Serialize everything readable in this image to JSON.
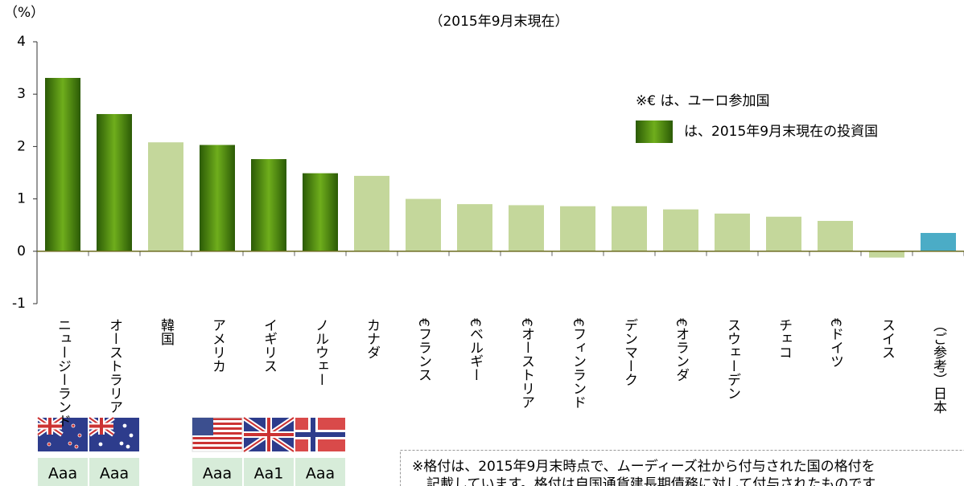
{
  "chart_data": {
    "type": "bar",
    "subtitle": "（2015年9月末現在）",
    "y_label": "（%）",
    "categories": [
      "ニュージーランド",
      "オーストラリア",
      "韓国",
      "アメリカ",
      "イギリス",
      "ノルウェー",
      "カナダ",
      "€フランス",
      "€ベルギー",
      "€オーストリア",
      "€フィンランド",
      "デンマーク",
      "€オランダ",
      "スウェーデン",
      "チェコ",
      "€ドイツ",
      "スイス",
      "（ご参考）日本"
    ],
    "values": [
      3.31,
      2.62,
      2.08,
      2.03,
      1.76,
      1.49,
      1.44,
      1.0,
      0.9,
      0.88,
      0.86,
      0.86,
      0.8,
      0.72,
      0.66,
      0.58,
      -0.12,
      0.35
    ],
    "colors": [
      "#3f7d0d",
      "#3f7d0d",
      "#c4d79b",
      "#3f7d0d",
      "#3f7d0d",
      "#3f7d0d",
      "#c4d79b",
      "#c4d79b",
      "#c4d79b",
      "#c4d79b",
      "#c4d79b",
      "#c4d79b",
      "#c4d79b",
      "#c4d79b",
      "#c4d79b",
      "#c4d79b",
      "#c4d79b",
      "#4bacc6"
    ],
    "ylim": [
      -1,
      4
    ],
    "yticks": [
      -1,
      0,
      1,
      2,
      3,
      4
    ],
    "grid": false,
    "legend": [
      "※€ は、ユーロ参加国",
      "は、2015年9月末現在の投資国"
    ],
    "ratings": [
      "Aaa",
      "Aaa",
      null,
      "Aaa",
      "Aa1",
      "Aaa"
    ],
    "note": [
      "※格付は、2015年9月末時点で、ムーディーズ社から付与された国の格付を",
      "記載しています。格付は自国通貨建長期債務に対して付与されたものです"
    ]
  }
}
